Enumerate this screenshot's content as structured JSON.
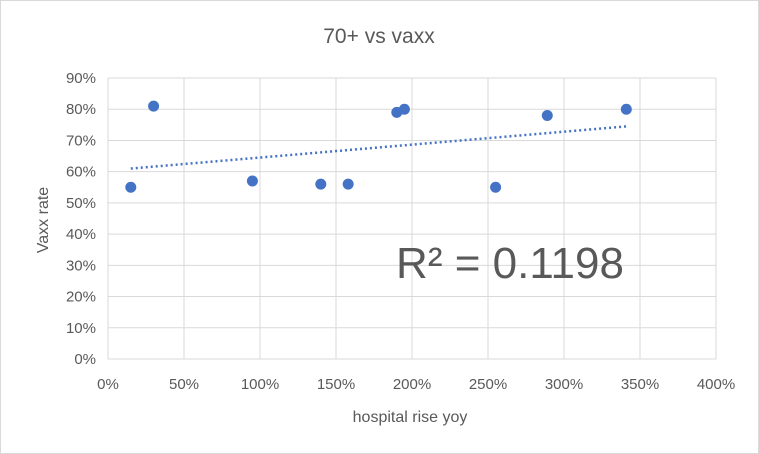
{
  "chart_data": {
    "type": "scatter",
    "title": "70+ vs vaxx",
    "xlabel": "hospital rise yoy",
    "ylabel": "Vaxx rate",
    "xlim": [
      0,
      4
    ],
    "ylim": [
      0,
      0.9
    ],
    "x_ticks": [
      0,
      0.5,
      1,
      1.5,
      2,
      2.5,
      3,
      3.5,
      4
    ],
    "y_ticks": [
      0,
      0.1,
      0.2,
      0.3,
      0.4,
      0.5,
      0.6,
      0.7,
      0.8,
      0.9
    ],
    "x_tick_labels": [
      "0%",
      "50%",
      "100%",
      "150%",
      "200%",
      "250%",
      "300%",
      "350%",
      "400%"
    ],
    "y_tick_labels": [
      "0%",
      "10%",
      "20%",
      "30%",
      "40%",
      "50%",
      "60%",
      "70%",
      "80%",
      "90%"
    ],
    "grid": true,
    "legend": "none",
    "series": [
      {
        "name": "Vaxx rate",
        "color": "#4472c4",
        "x": [
          0.15,
          0.3,
          0.95,
          1.4,
          1.58,
          1.9,
          1.95,
          2.55,
          2.89,
          3.41
        ],
        "y": [
          0.55,
          0.81,
          0.57,
          0.56,
          0.56,
          0.79,
          0.8,
          0.55,
          0.78,
          0.8
        ]
      }
    ],
    "trendline": {
      "type": "linear",
      "color": "#4472c4",
      "x": [
        0.15,
        3.41
      ],
      "y": [
        0.61,
        0.745
      ],
      "r_squared_label": "R² = 0.1198"
    }
  }
}
